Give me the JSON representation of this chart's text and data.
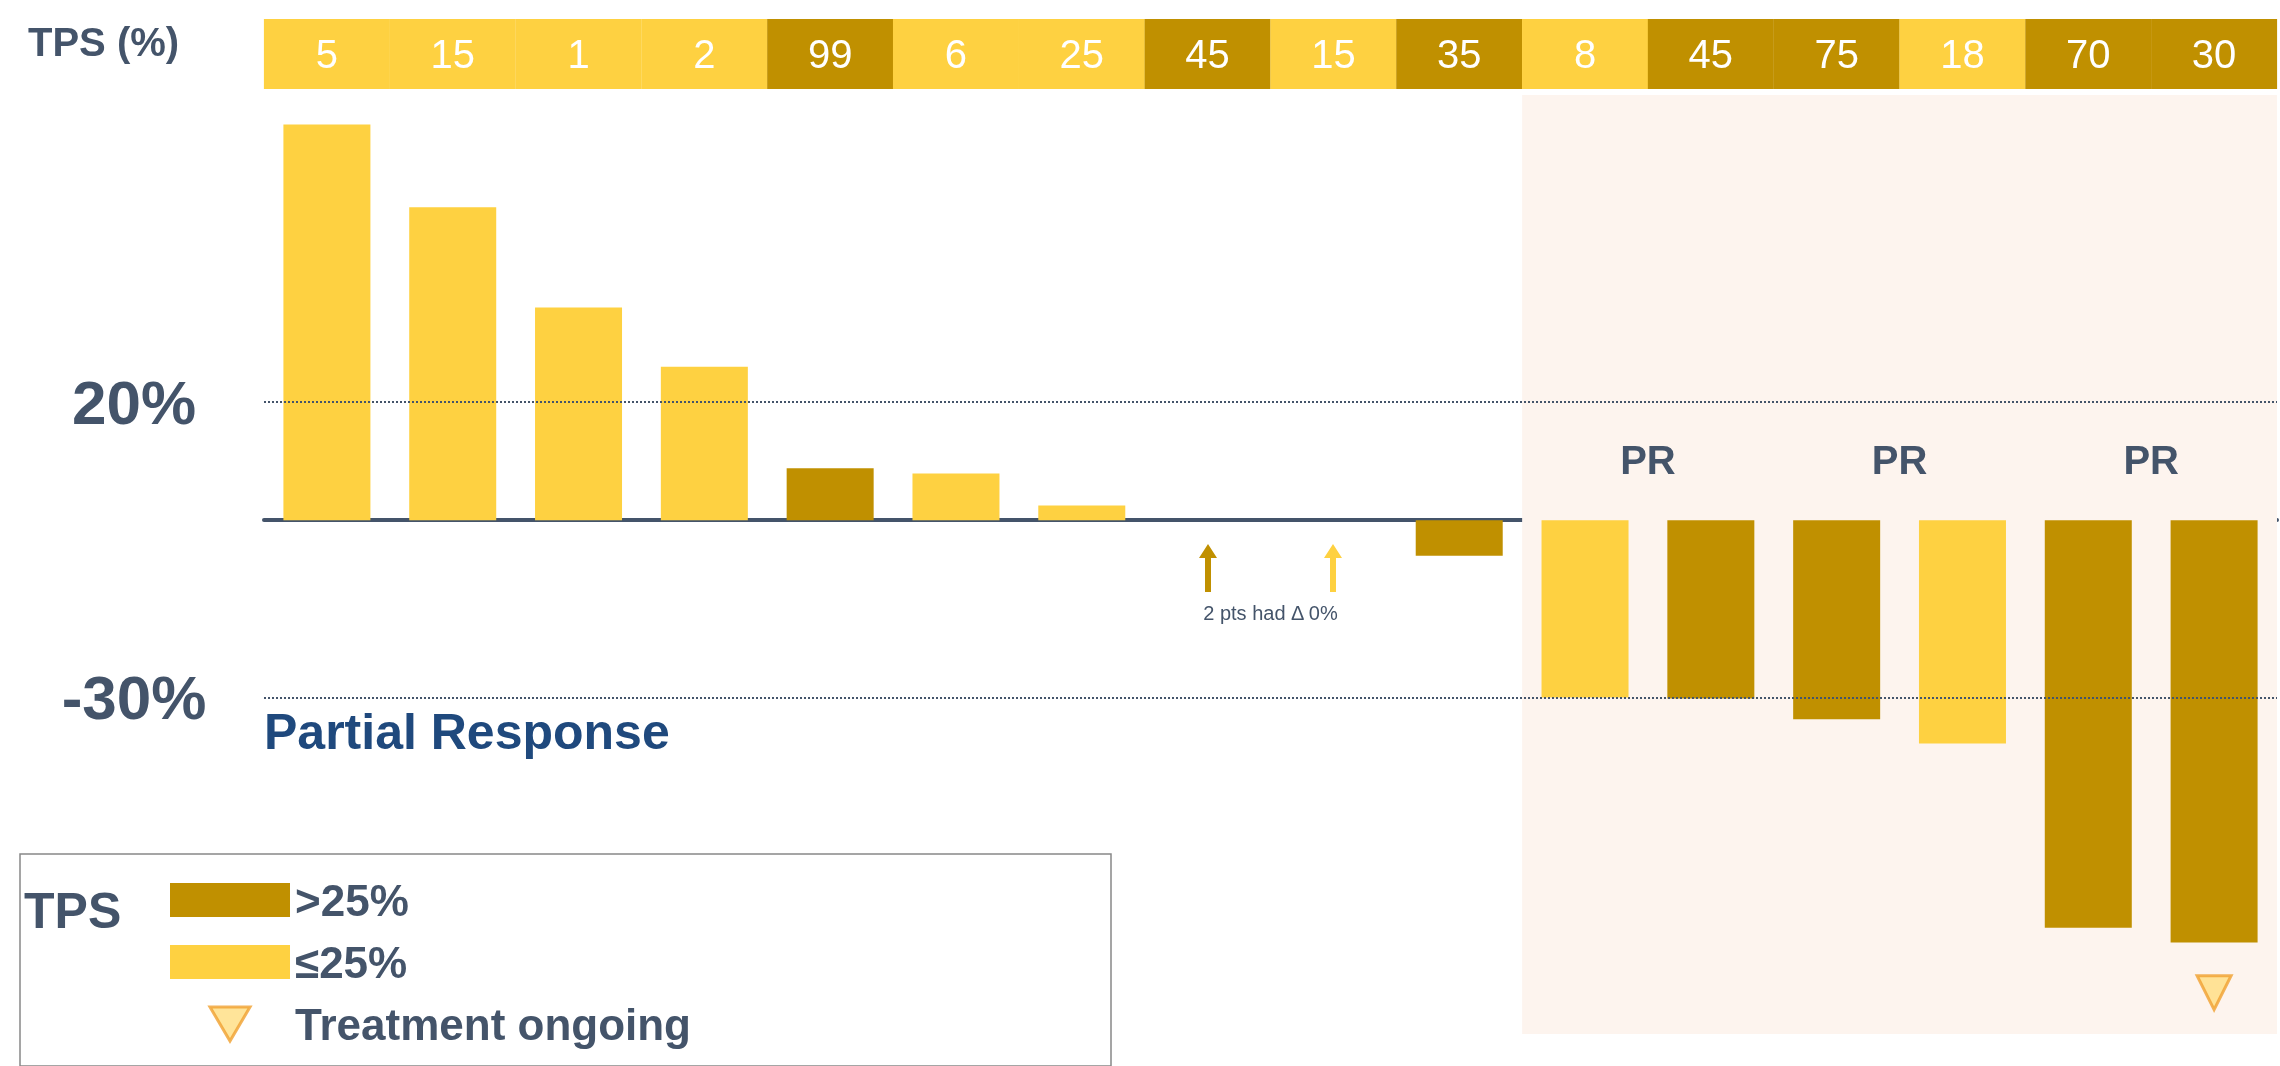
{
  "chart_data": {
    "type": "bar",
    "xlabel": "TPS (%)",
    "categories": [
      "5",
      "15",
      "1",
      "2",
      "99",
      "6",
      "25",
      "45",
      "15",
      "35",
      "8",
      "45",
      "75",
      "18",
      "70",
      "30"
    ],
    "series": [
      {
        "name": ">25%",
        "color": "#c09000",
        "values": [
          null,
          null,
          null,
          null,
          8.8,
          null,
          null,
          0,
          null,
          -6,
          null,
          -30.2,
          -33.7,
          null,
          -69,
          -71.5
        ]
      },
      {
        "name": "≤25%",
        "color": "#fed141",
        "values": [
          67,
          53,
          36,
          26,
          null,
          7.9,
          2.5,
          null,
          0,
          null,
          -30,
          null,
          null,
          -37.8,
          null,
          null
        ]
      },
      {
        "name": "Treatment ongoing",
        "type": "scatter",
        "color": "#ffdd80",
        "marker": "triangle",
        "x": [
          "30"
        ],
        "values": [
          -80
        ]
      }
    ],
    "ylim": [
      -87,
      72
    ],
    "yticks": [
      {
        "value": 20,
        "label": "20%"
      },
      {
        "value": -30,
        "label": "-30%"
      }
    ],
    "ref_lines": [
      {
        "axis": "y",
        "value": 20,
        "label": null,
        "line_style": "dotted",
        "color": "#44546a"
      },
      {
        "axis": "y",
        "value": -30,
        "label": "Partial Response",
        "line_style": "dotted",
        "color": "#44546a"
      }
    ],
    "bands": [
      {
        "axis": "x",
        "from": "8",
        "to": "30",
        "label": null,
        "color": "#fdf4ee"
      }
    ],
    "annotations": [
      "PR",
      "PR",
      "PR",
      "2 pts had Δ 0%"
    ],
    "legend": "bottom left",
    "legend_title": "TPS"
  }
}
